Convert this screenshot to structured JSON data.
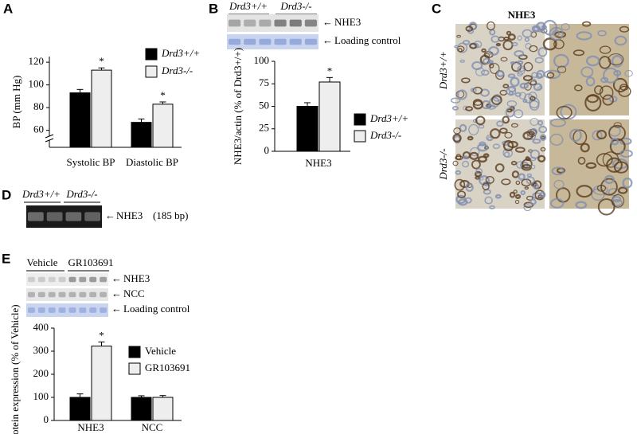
{
  "panel_labels": [
    "A",
    "B",
    "C",
    "D",
    "E"
  ],
  "chart_data": [
    {
      "type": "bar",
      "ylabel": "BP (mm Hg)",
      "categories": [
        "Systolic BP",
        "Diastolic BP"
      ],
      "series": [
        {
          "name": "Drd3+/+",
          "color": "#000000",
          "values": [
            93,
            67
          ],
          "errors": [
            3,
            3
          ]
        },
        {
          "name": "Drd3-/-",
          "color": "#eeeeee",
          "values": [
            113,
            83
          ],
          "errors": [
            2,
            2
          ]
        }
      ],
      "annotations": [
        "*",
        "*"
      ],
      "ylim": [
        45,
        125
      ],
      "yticks": [
        60,
        80,
        100,
        120
      ],
      "axis_break": true
    },
    {
      "type": "bar",
      "ylabel": "NHE3/actin (% of Drd3+/+)",
      "categories": [
        "NHE3"
      ],
      "series": [
        {
          "name": "Drd3+/+",
          "color": "#000000",
          "values": [
            50
          ],
          "errors": [
            4
          ]
        },
        {
          "name": "Drd3-/-",
          "color": "#eeeeee",
          "values": [
            77
          ],
          "errors": [
            5
          ]
        }
      ],
      "annotations": [
        "*"
      ],
      "ylim": [
        0,
        100
      ],
      "yticks": [
        0,
        25,
        50,
        75,
        100
      ]
    },
    {
      "type": "bar",
      "ylabel": "Protein expression (% of Vehicle)",
      "categories": [
        "NHE3",
        "NCC"
      ],
      "series": [
        {
          "name": "Vehicle",
          "color": "#000000",
          "values": [
            100,
            100
          ],
          "errors": [
            15,
            7
          ]
        },
        {
          "name": "GR103691",
          "color": "#eeeeee",
          "values": [
            322,
            100
          ],
          "errors": [
            18,
            8
          ]
        }
      ],
      "annotations": [
        "*"
      ],
      "ylim": [
        0,
        400
      ],
      "yticks": [
        0,
        100,
        200,
        300,
        400
      ]
    }
  ],
  "panel_b_blot": {
    "groups": [
      "Drd3+/+",
      "Drd3-/-"
    ],
    "bands": [
      "NHE3",
      "Loading control"
    ]
  },
  "panel_c": {
    "title": "NHE3",
    "rows": [
      "Drd3+/+",
      "Drd3-/-"
    ]
  },
  "panel_d": {
    "groups": [
      "Drd3+/+",
      "Drd3-/-"
    ],
    "band": "NHE3",
    "size": "(185 bp)"
  },
  "panel_e_blot": {
    "groups": [
      "Vehicle",
      "GR103691"
    ],
    "bands": [
      "NHE3",
      "NCC",
      "Loading control"
    ]
  }
}
